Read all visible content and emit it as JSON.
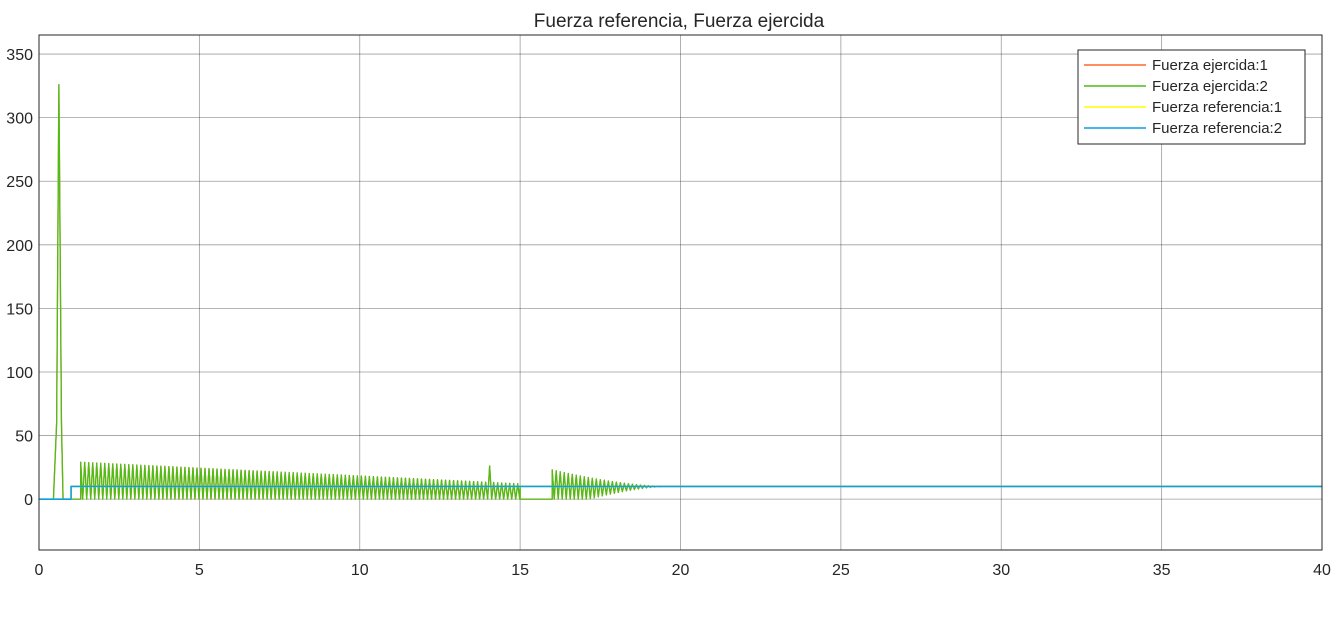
{
  "chart_data": {
    "type": "line",
    "title": "Fuerza referencia, Fuerza ejercida",
    "xlabel": "",
    "ylabel": "",
    "xlim": [
      0,
      40
    ],
    "ylim": [
      -40,
      365
    ],
    "x_ticks": [
      0,
      5,
      10,
      15,
      20,
      25,
      30,
      35,
      40
    ],
    "y_ticks": [
      0,
      50,
      100,
      150,
      200,
      250,
      300,
      350
    ],
    "grid": true,
    "legend_position": "top-right",
    "series": [
      {
        "name": "Fuerza ejercida:1",
        "color": "#ff6929",
        "description_values": "overlaps Fuerza ejercida:2",
        "points": [
          [
            0,
            0
          ],
          [
            0.45,
            0
          ],
          [
            0.55,
            60
          ],
          [
            0.62,
            326
          ],
          [
            0.7,
            60
          ],
          [
            0.75,
            0
          ],
          [
            1.3,
            0
          ],
          [
            1.3,
            32
          ],
          [
            15.0,
            10
          ],
          [
            15.0,
            0
          ],
          [
            16.0,
            0
          ],
          [
            16.05,
            23
          ],
          [
            19.5,
            10
          ],
          [
            40,
            10
          ]
        ]
      },
      {
        "name": "Fuerza ejercida:2",
        "color": "#4dbe16",
        "description_values": "spike to ~326 at t≈0.6, oscillation 0–~30 from t≈1.3 to 15, decaying oscillation from t≈16 settling at 10 by t≈19.5",
        "points": [
          [
            0,
            0
          ],
          [
            0.45,
            0
          ],
          [
            0.55,
            60
          ],
          [
            0.62,
            326
          ],
          [
            0.7,
            60
          ],
          [
            0.75,
            0
          ],
          [
            1.3,
            0
          ],
          [
            1.3,
            32
          ],
          [
            15.0,
            10
          ],
          [
            15.0,
            0
          ],
          [
            16.0,
            0
          ],
          [
            16.05,
            23
          ],
          [
            19.5,
            10
          ],
          [
            40,
            10
          ]
        ]
      },
      {
        "name": "Fuerza referencia:1",
        "color": "#ffff00",
        "points": [
          [
            0,
            0
          ],
          [
            1.0,
            0
          ],
          [
            1.0,
            10
          ],
          [
            40,
            10
          ]
        ]
      },
      {
        "name": "Fuerza referencia:2",
        "color": "#0c9ee6",
        "points": [
          [
            0,
            0
          ],
          [
            1.0,
            0
          ],
          [
            1.0,
            10
          ],
          [
            40,
            10
          ]
        ]
      }
    ],
    "oscillation": {
      "segment1": {
        "start": 1.3,
        "end": 15.0,
        "period": 0.125,
        "peak_start": 29,
        "peak_end": 12,
        "low": 0,
        "extra_spike": [
          14.0,
          26
        ]
      },
      "segment2": {
        "start": 16.0,
        "end": 19.5,
        "period": 0.125,
        "peak_start": 23,
        "settle": 10
      }
    }
  }
}
